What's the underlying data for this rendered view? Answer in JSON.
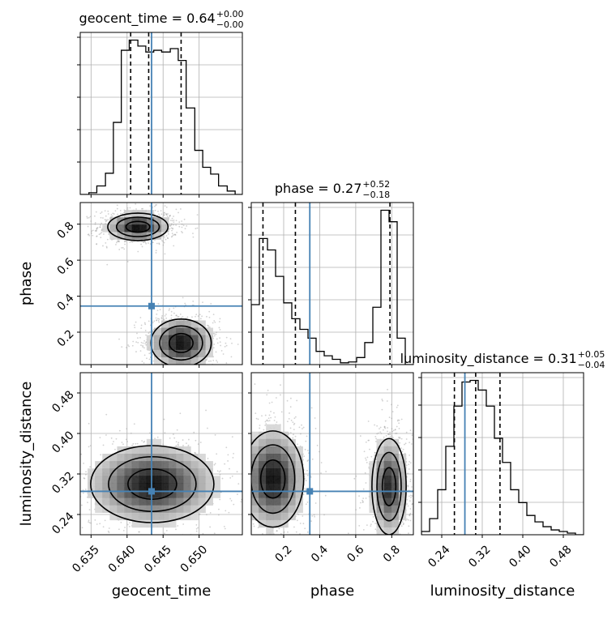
{
  "chart_data": {
    "type": "corner",
    "parameters": [
      "geocent_time",
      "phase",
      "luminosity_distance"
    ],
    "injection": {
      "geocent_time": 0.6434,
      "phase": 0.345,
      "luminosity_distance": 0.2857
    },
    "titles": [
      {
        "param": "geocent_time",
        "text": "geocent_time = 0.64",
        "plus": "+0.00",
        "minus": "−0.00"
      },
      {
        "param": "phase",
        "text": "phase = 0.27",
        "plus": "+0.52",
        "minus": "−0.18"
      },
      {
        "param": "luminosity_distance",
        "text": "luminosity_distance = 0.31",
        "plus": "+0.05",
        "minus": "−0.04"
      }
    ],
    "quantiles": {
      "geocent_time": [
        0.6405,
        0.643,
        0.6475
      ],
      "phase": [
        0.085,
        0.265,
        0.79
      ],
      "luminosity_distance": [
        0.265,
        0.307,
        0.355
      ]
    },
    "axes": {
      "geocent_time": {
        "range": [
          0.6335,
          0.656
        ],
        "ticks": [
          "0.635",
          "0.640",
          "0.645",
          "0.650"
        ],
        "tick_values": [
          0.635,
          0.64,
          0.645,
          0.65
        ],
        "label": "geocent_time"
      },
      "phase": {
        "range": [
          0.02,
          0.92
        ],
        "ticks": [
          "0.2",
          "0.4",
          "0.6",
          "0.8"
        ],
        "tick_values": [
          0.2,
          0.4,
          0.6,
          0.8
        ],
        "label": "phase"
      },
      "luminosity_distance": {
        "range": [
          0.2,
          0.52
        ],
        "ticks": [
          "0.24",
          "0.32",
          "0.40",
          "0.48"
        ],
        "tick_values": [
          0.24,
          0.32,
          0.4,
          0.48
        ],
        "label": "luminosity_distance"
      }
    },
    "histograms": {
      "geocent_time": {
        "edges": [
          0.6335,
          0.6347,
          0.6358,
          0.637,
          0.6381,
          0.6392,
          0.6403,
          0.6415,
          0.6426,
          0.6437,
          0.6448,
          0.646,
          0.6471,
          0.6482,
          0.6494,
          0.6505,
          0.6516,
          0.6527,
          0.6539,
          0.655,
          0.656
        ],
        "counts": [
          0,
          2,
          10,
          25,
          85,
          170,
          182,
          175,
          168,
          170,
          168,
          172,
          158,
          102,
          52,
          32,
          24,
          10,
          4,
          0
        ]
      },
      "phase": {
        "edges": [
          0.02,
          0.065,
          0.11,
          0.155,
          0.2,
          0.245,
          0.29,
          0.335,
          0.38,
          0.425,
          0.47,
          0.515,
          0.56,
          0.605,
          0.65,
          0.695,
          0.74,
          0.785,
          0.83,
          0.875,
          0.92
        ],
        "counts": [
          68,
          143,
          130,
          100,
          70,
          52,
          40,
          30,
          15,
          10,
          6,
          2,
          3,
          8,
          25,
          65,
          175,
          162,
          30,
          0
        ]
      },
      "luminosity_distance": {
        "edges": [
          0.2,
          0.216,
          0.232,
          0.248,
          0.264,
          0.28,
          0.296,
          0.312,
          0.328,
          0.344,
          0.36,
          0.376,
          0.392,
          0.408,
          0.424,
          0.44,
          0.456,
          0.472,
          0.488,
          0.504,
          0.52
        ],
        "counts": [
          2,
          10,
          28,
          55,
          80,
          95,
          96,
          90,
          80,
          60,
          45,
          28,
          20,
          12,
          8,
          5,
          3,
          2,
          1,
          0
        ]
      }
    },
    "contour_pairs": [
      {
        "x": "geocent_time",
        "y": "phase",
        "blobs": [
          {
            "cx": 0.6415,
            "cy": 0.785,
            "sx": 0.0022,
            "sy": 0.04,
            "w": 1.0
          },
          {
            "cx": 0.6475,
            "cy": 0.14,
            "sx": 0.0022,
            "sy": 0.07,
            "w": 1.0
          }
        ]
      },
      {
        "x": "geocent_time",
        "y": "luminosity_distance",
        "blobs": [
          {
            "cx": 0.6435,
            "cy": 0.3,
            "sx": 0.0045,
            "sy": 0.04,
            "w": 1.0
          }
        ]
      },
      {
        "x": "phase",
        "y": "luminosity_distance",
        "blobs": [
          {
            "cx": 0.14,
            "cy": 0.31,
            "sx": 0.09,
            "sy": 0.05,
            "w": 1.0
          },
          {
            "cx": 0.785,
            "cy": 0.295,
            "sx": 0.05,
            "sy": 0.05,
            "w": 0.9
          }
        ]
      }
    ],
    "colors": {
      "injection": "#4682b4",
      "line": "#000000",
      "grid": "#b0b0b0",
      "points": "#9a9a9a"
    },
    "grid": true
  }
}
